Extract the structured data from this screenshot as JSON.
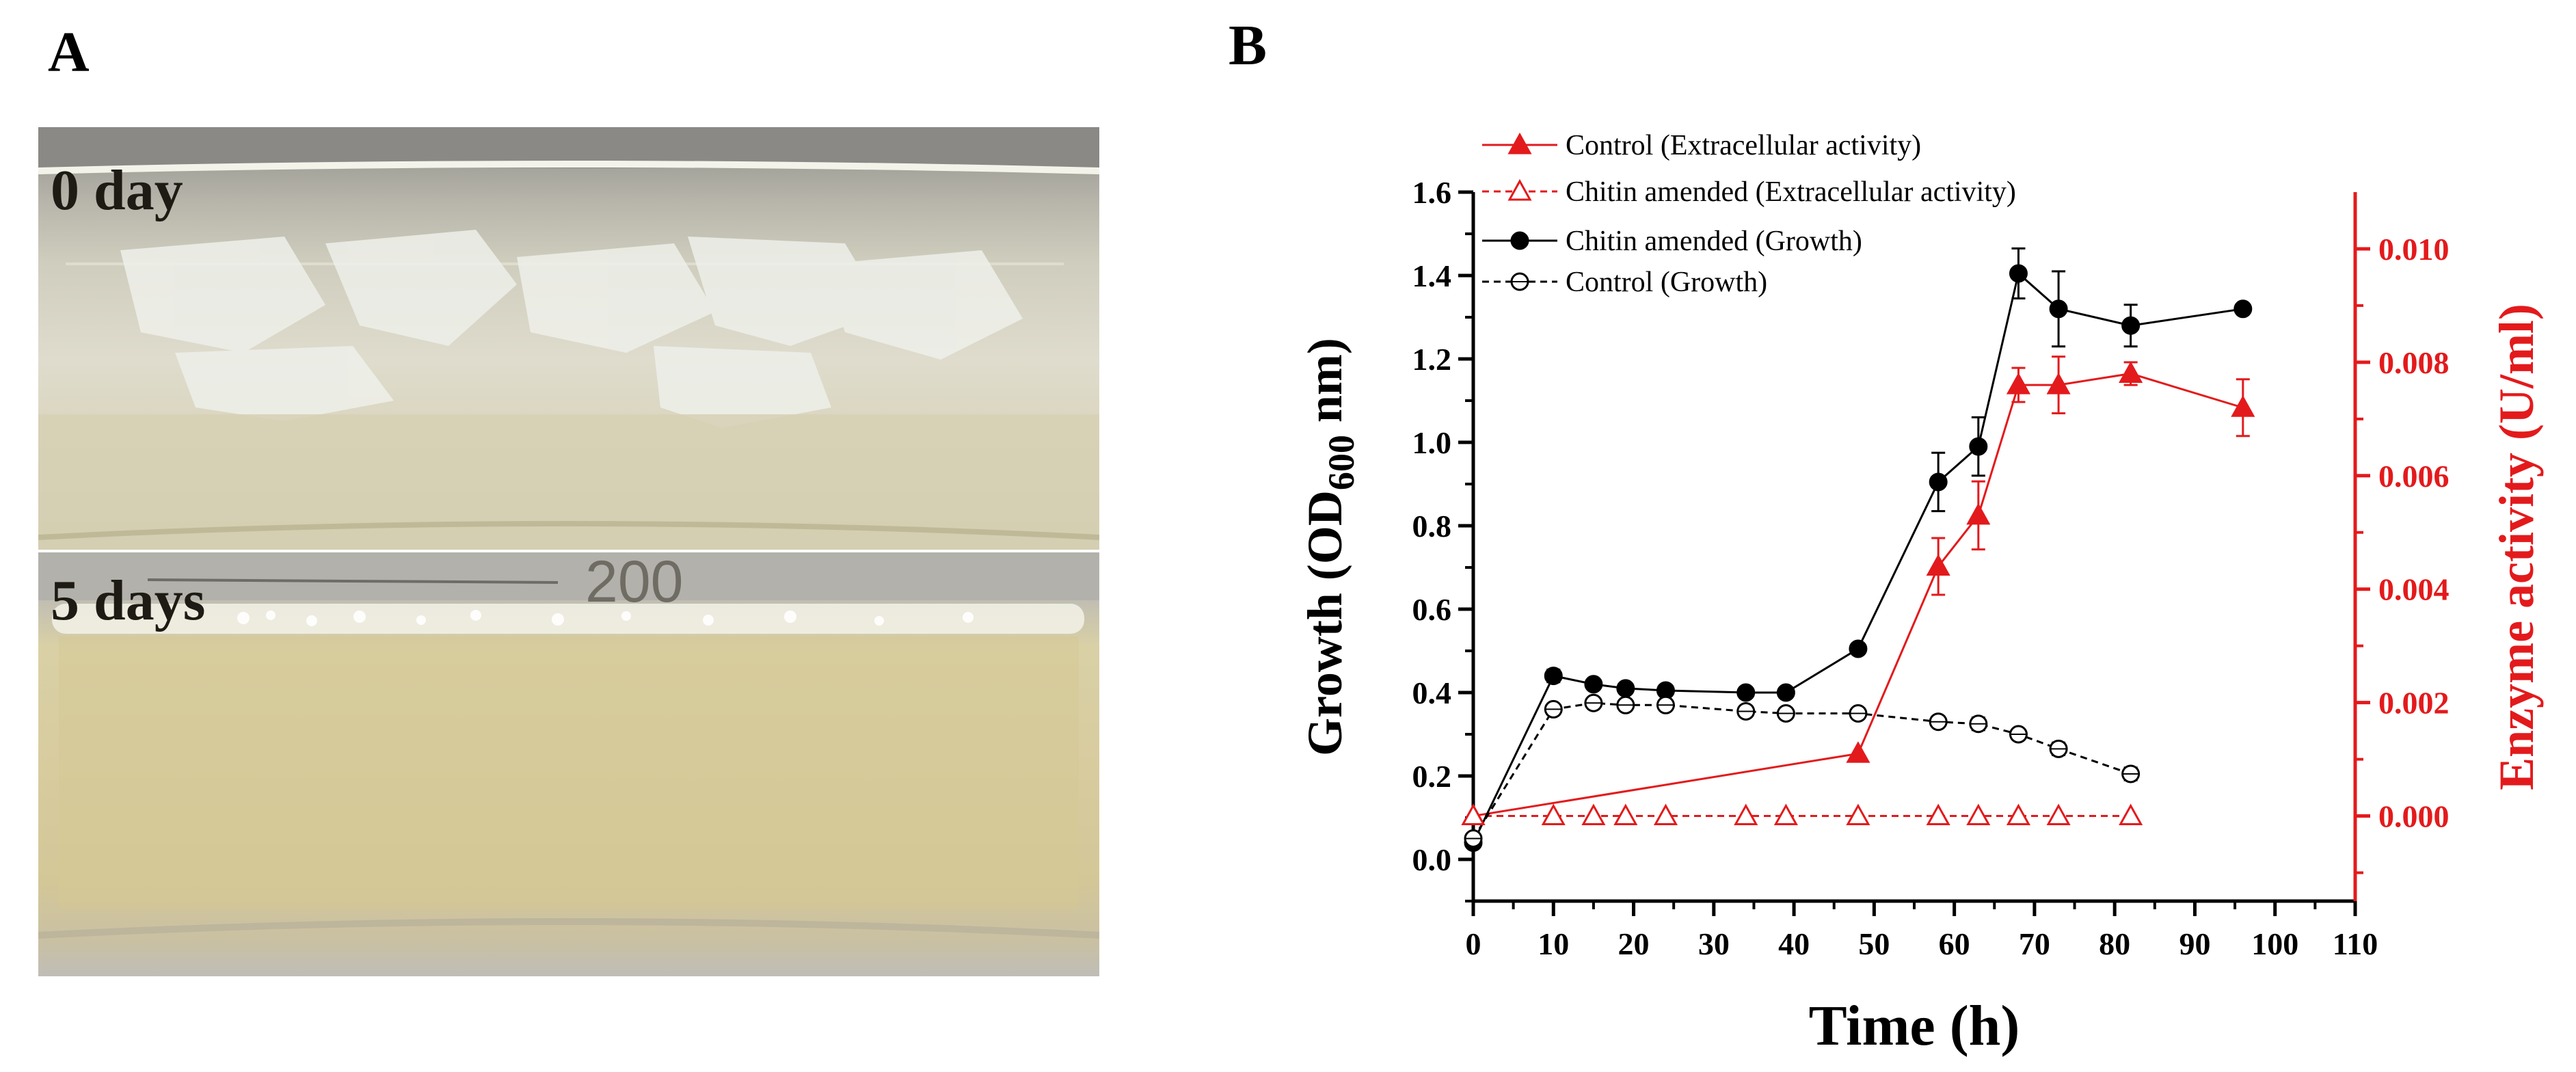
{
  "panel_a": {
    "letter": "A",
    "photo_top_label": "0 day",
    "photo_bottom_label": "5 days",
    "flask_marking": "200"
  },
  "panel_b": {
    "letter": "B"
  },
  "colors": {
    "red": "#e31a1c",
    "black": "#000000"
  },
  "chart_data": {
    "type": "line",
    "xlabel": "Time (h)",
    "ylabel_left": "Growth (OD600 nm)",
    "ylabel_right": "Enzyme activity (U/ml)",
    "xlim": [
      0,
      110
    ],
    "ylim_left": [
      -0.1,
      1.6
    ],
    "ylim_right": [
      -0.0015,
      0.011
    ],
    "x_ticks": [
      0,
      10,
      20,
      30,
      40,
      50,
      60,
      70,
      80,
      90,
      100,
      110
    ],
    "y_left_ticks": [
      "0.0",
      "0.2",
      "0.4",
      "0.6",
      "0.8",
      "1.0",
      "1.2",
      "1.4",
      "1.6"
    ],
    "y_right_ticks": [
      "0.000",
      "0.002",
      "0.004",
      "0.006",
      "0.008",
      "0.010"
    ],
    "legend_position": "top-left",
    "series": [
      {
        "name": "Control (Extracellular activity)",
        "axis": "right",
        "color": "#e31a1c",
        "line": "solid",
        "marker": "triangle-filled",
        "x": [
          0,
          48,
          58,
          63,
          68,
          73,
          82,
          96
        ],
        "y": [
          0.0,
          0.0011,
          0.0044,
          0.0053,
          0.0076,
          0.0076,
          0.0078,
          0.0072
        ],
        "err": [
          0,
          0,
          0.0005,
          0.0006,
          0.0003,
          0.0005,
          0.0002,
          0.0005
        ]
      },
      {
        "name": "Chitin amended (Extracellular activity)",
        "axis": "right",
        "color": "#e31a1c",
        "line": "dashed",
        "marker": "triangle-open",
        "x": [
          0,
          10,
          15,
          19,
          24,
          34,
          39,
          48,
          58,
          63,
          68,
          73,
          82
        ],
        "y": [
          0,
          0,
          0,
          0,
          0,
          0,
          0,
          0,
          0,
          0,
          0,
          0,
          0
        ],
        "err": []
      },
      {
        "name": "Chitin amended (Growth)",
        "axis": "left",
        "color": "#000000",
        "line": "solid",
        "marker": "circle-filled",
        "x": [
          0,
          10,
          15,
          19,
          24,
          34,
          39,
          48,
          58,
          63,
          68,
          73,
          82,
          96
        ],
        "y": [
          0.04,
          0.44,
          0.42,
          0.41,
          0.405,
          0.4,
          0.4,
          0.505,
          0.905,
          0.99,
          1.405,
          1.32,
          1.28,
          1.32
        ],
        "err": [
          0,
          0.015,
          0.01,
          0.01,
          0.01,
          0.01,
          0.01,
          0.01,
          0.07,
          0.07,
          0.06,
          0.09,
          0.05,
          0.01
        ]
      },
      {
        "name": "Control (Growth)",
        "axis": "left",
        "color": "#000000",
        "line": "dashed",
        "marker": "circle-open",
        "x": [
          0,
          10,
          15,
          19,
          24,
          34,
          39,
          48,
          58,
          63,
          68,
          73,
          82
        ],
        "y": [
          0.05,
          0.36,
          0.375,
          0.37,
          0.37,
          0.355,
          0.35,
          0.35,
          0.33,
          0.325,
          0.3,
          0.265,
          0.205
        ],
        "err": [
          0,
          0.01,
          0.01,
          0.01,
          0.01,
          0.01,
          0.01,
          0.01,
          0.01,
          0.015,
          0.01,
          0.015,
          0.015
        ]
      }
    ]
  }
}
